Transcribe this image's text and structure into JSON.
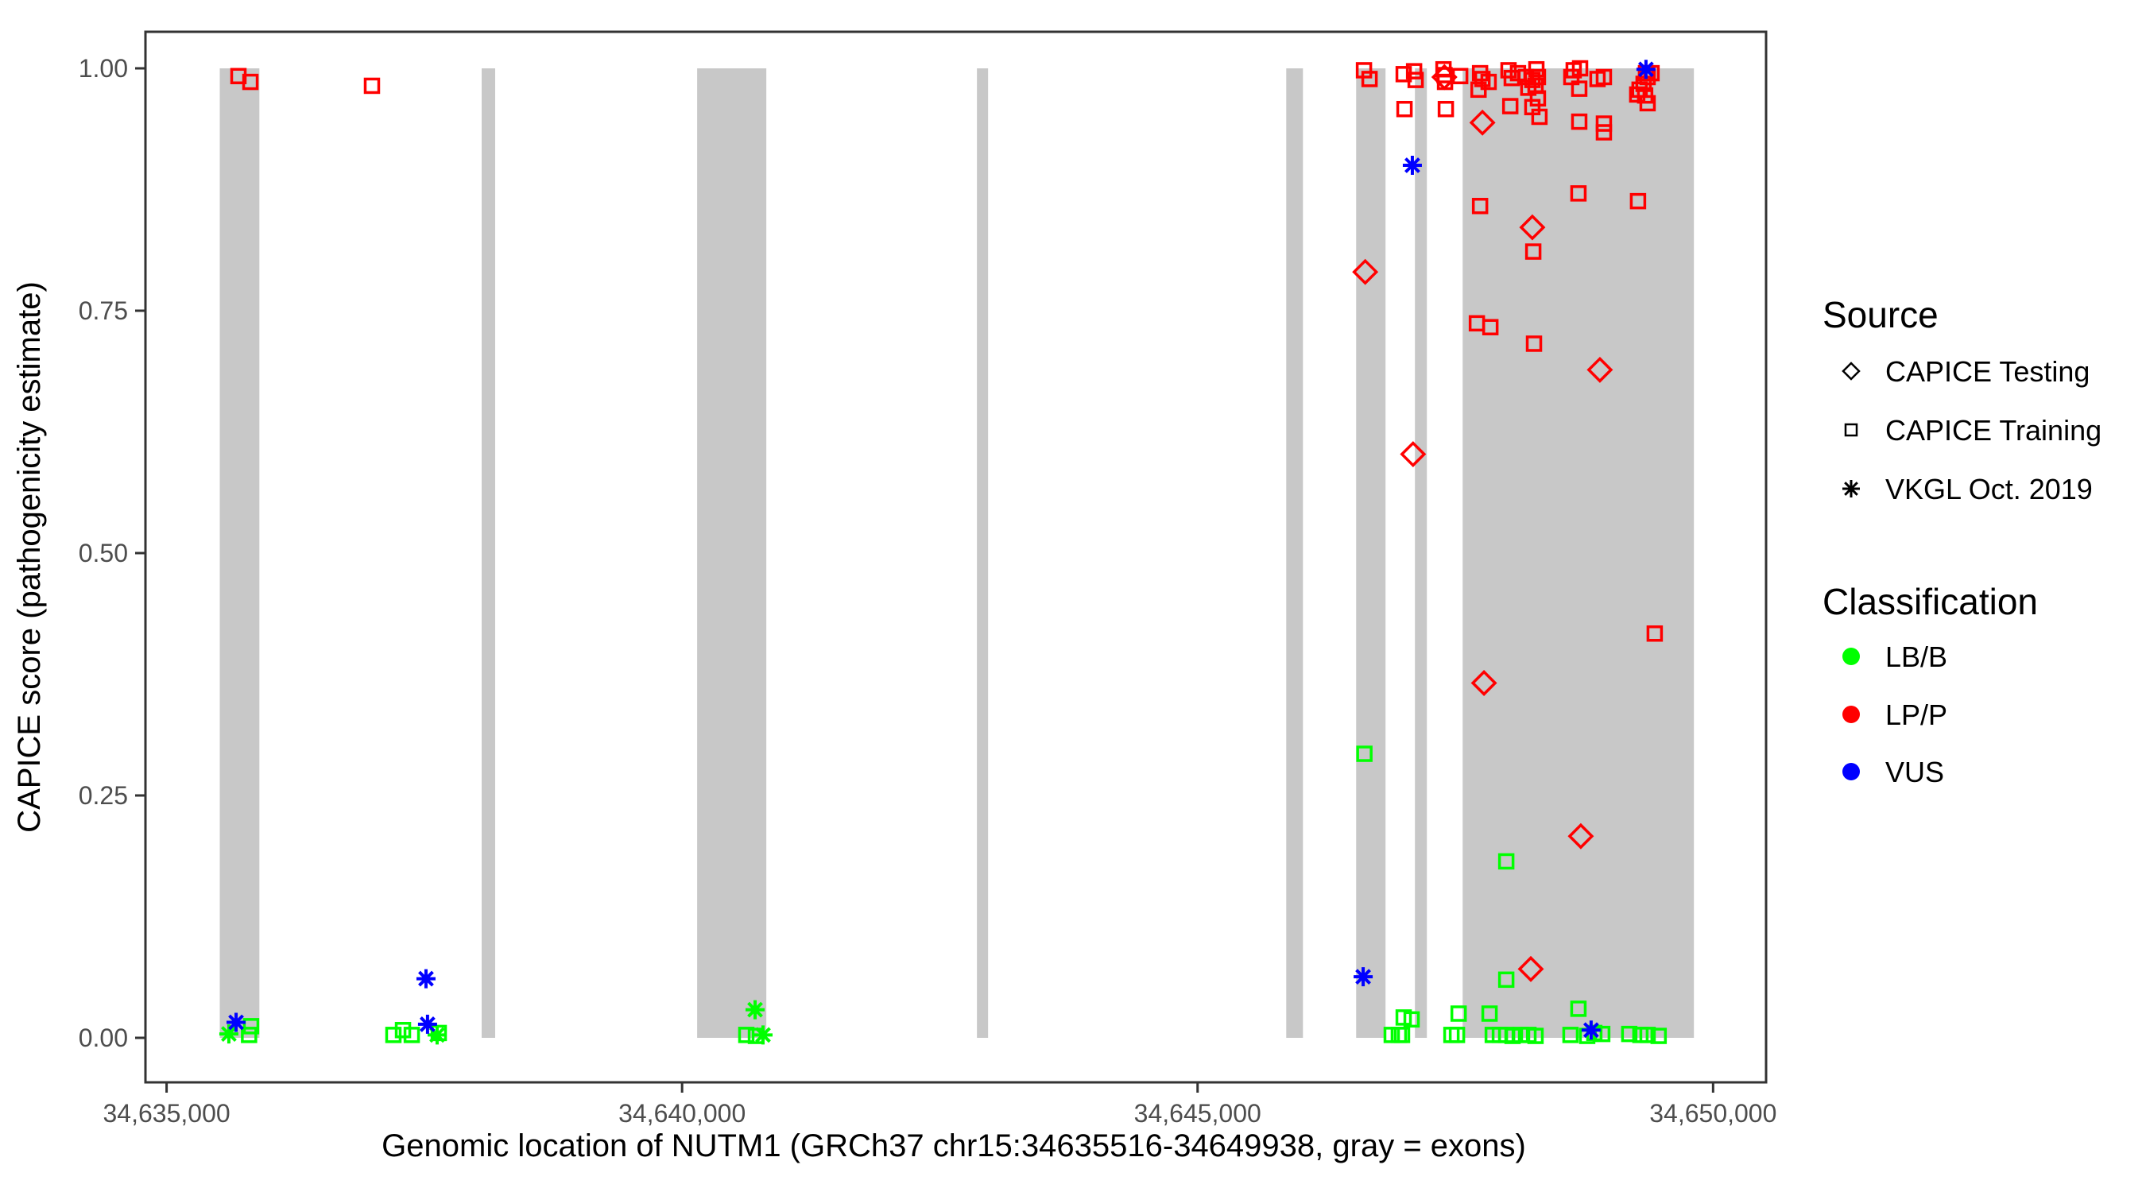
{
  "chart_data": {
    "type": "scatter",
    "title": "",
    "xlabel": "Genomic location of NUTM1 (GRCh37 chr15:34635516-34649938, gray = exons)",
    "ylabel": "CAPICE score (pathogenicity estimate)",
    "xlim": [
      34634795,
      34650514
    ],
    "ylim": [
      -0.0459,
      1.0377
    ],
    "grid": false,
    "x_ticks": [
      {
        "value": 34635000,
        "label": "34,635,000"
      },
      {
        "value": 34640000,
        "label": "34,640,000"
      },
      {
        "value": 34645000,
        "label": "34,645,000"
      },
      {
        "value": 34650000,
        "label": "34,650,000"
      }
    ],
    "y_ticks": [
      {
        "value": 0.0,
        "label": "0.00"
      },
      {
        "value": 0.25,
        "label": "0.25"
      },
      {
        "value": 0.5,
        "label": "0.50"
      },
      {
        "value": 0.75,
        "label": "0.75"
      },
      {
        "value": 1.0,
        "label": "1.00"
      }
    ],
    "exons": [
      [
        34635516,
        34635900
      ],
      [
        34638056,
        34638187
      ],
      [
        34640146,
        34640817
      ],
      [
        34642860,
        34642968
      ],
      [
        34645860,
        34646022
      ],
      [
        34646538,
        34646823
      ],
      [
        34647108,
        34647224
      ],
      [
        34647571,
        34649814
      ]
    ],
    "series": [
      {
        "source": "CAPICE Training",
        "classification": "LP/P",
        "shape": "square",
        "color": "#FF0000",
        "points": [
          [
            34635697,
            0.992
          ],
          [
            34635813,
            0.986
          ],
          [
            34636992,
            0.982
          ],
          [
            34646614,
            0.998
          ],
          [
            34646668,
            0.989
          ],
          [
            34646999,
            0.994
          ],
          [
            34647007,
            0.958
          ],
          [
            34647100,
            0.997
          ],
          [
            34647115,
            0.988
          ],
          [
            34647385,
            0.999
          ],
          [
            34647395,
            0.993
          ],
          [
            34647400,
            0.986
          ],
          [
            34647408,
            0.958
          ],
          [
            34647547,
            0.992
          ],
          [
            34647709,
            0.737
          ],
          [
            34647725,
            0.978
          ],
          [
            34647740,
            0.995
          ],
          [
            34647763,
            0.989
          ],
          [
            34647740,
            0.858
          ],
          [
            34647823,
            0.986
          ],
          [
            34647840,
            0.733
          ],
          [
            34648016,
            0.998
          ],
          [
            34648033,
            0.961
          ],
          [
            34648047,
            0.99
          ],
          [
            34648108,
            0.995
          ],
          [
            34648185,
            0.991
          ],
          [
            34648208,
            0.98
          ],
          [
            34648247,
            0.988
          ],
          [
            34648247,
            0.96
          ],
          [
            34648278,
            0.982
          ],
          [
            34648286,
            0.999
          ],
          [
            34648301,
            0.991
          ],
          [
            34648301,
            0.969
          ],
          [
            34648316,
            0.95
          ],
          [
            34648256,
            0.811
          ],
          [
            34648263,
            0.716
          ],
          [
            34648625,
            0.991
          ],
          [
            34648648,
            0.998
          ],
          [
            34648694,
            0.871
          ],
          [
            34648702,
            0.979
          ],
          [
            34648702,
            0.945
          ],
          [
            34648710,
            1.0
          ],
          [
            34648879,
            0.989
          ],
          [
            34648941,
            0.991
          ],
          [
            34648941,
            0.943
          ],
          [
            34648941,
            0.934
          ],
          [
            34649264,
            0.973
          ],
          [
            34649272,
            0.863
          ],
          [
            34649287,
            0.978
          ],
          [
            34649326,
            0.984
          ],
          [
            34649341,
            0.972
          ],
          [
            34649349,
            0.995
          ],
          [
            34649365,
            0.991
          ],
          [
            34649365,
            0.964
          ],
          [
            34649403,
            0.995
          ],
          [
            34649434,
            0.417
          ]
        ]
      },
      {
        "source": "CAPICE Testing",
        "classification": "LP/P",
        "shape": "diamond",
        "color": "#FF0000",
        "points": [
          [
            34646626,
            0.79
          ],
          [
            34647090,
            0.602
          ],
          [
            34647394,
            0.991
          ],
          [
            34647763,
            0.944
          ],
          [
            34647778,
            0.366
          ],
          [
            34648232,
            0.071
          ],
          [
            34648247,
            0.836
          ],
          [
            34648717,
            0.208
          ],
          [
            34648902,
            0.689
          ]
        ]
      },
      {
        "source": "CAPICE Training",
        "classification": "LB/B",
        "shape": "square",
        "color": "#00FF00",
        "points": [
          [
            34635800,
            0.003
          ],
          [
            34635820,
            0.012
          ],
          [
            34637200,
            0.003
          ],
          [
            34637293,
            0.008
          ],
          [
            34637378,
            0.003
          ],
          [
            34637640,
            0.005
          ],
          [
            34640623,
            0.003
          ],
          [
            34640716,
            0.002
          ],
          [
            34646618,
            0.293
          ],
          [
            34646883,
            0.003
          ],
          [
            34646952,
            0.003
          ],
          [
            34646983,
            0.003
          ],
          [
            34646999,
            0.021
          ],
          [
            34647076,
            0.019
          ],
          [
            34647462,
            0.003
          ],
          [
            34647516,
            0.003
          ],
          [
            34647532,
            0.025
          ],
          [
            34647832,
            0.025
          ],
          [
            34647863,
            0.003
          ],
          [
            34647932,
            0.003
          ],
          [
            34647994,
            0.06
          ],
          [
            34647994,
            0.182
          ],
          [
            34647994,
            0.003
          ],
          [
            34648055,
            0.002
          ],
          [
            34648133,
            0.003
          ],
          [
            34648209,
            0.003
          ],
          [
            34648278,
            0.002
          ],
          [
            34648617,
            0.003
          ],
          [
            34648694,
            0.03
          ],
          [
            34648779,
            0.002
          ],
          [
            34648848,
            0.005
          ],
          [
            34648925,
            0.004
          ],
          [
            34649187,
            0.004
          ],
          [
            34649295,
            0.003
          ],
          [
            34649365,
            0.003
          ],
          [
            34649472,
            0.002
          ]
        ]
      },
      {
        "source": "VKGL Oct. 2019",
        "classification": "LB/B",
        "shape": "star",
        "color": "#00FF00",
        "points": [
          [
            34635604,
            0.004
          ],
          [
            34637624,
            0.003
          ],
          [
            34640708,
            0.029
          ],
          [
            34640785,
            0.003
          ]
        ]
      },
      {
        "source": "VKGL Oct. 2019",
        "classification": "VUS",
        "shape": "star",
        "color": "#0000FF",
        "points": [
          [
            34635674,
            0.016
          ],
          [
            34637516,
            0.061
          ],
          [
            34637531,
            0.014
          ],
          [
            34646606,
            0.063
          ],
          [
            34647083,
            0.9
          ],
          [
            34648817,
            0.008
          ],
          [
            34649349,
            0.999
          ]
        ]
      }
    ],
    "legend": {
      "source": {
        "title": "Source",
        "items": [
          {
            "label": "CAPICE Testing",
            "shape": "diamond"
          },
          {
            "label": "CAPICE Training",
            "shape": "square"
          },
          {
            "label": "VKGL Oct. 2019",
            "shape": "star"
          }
        ]
      },
      "classification": {
        "title": "Classification",
        "items": [
          {
            "label": "LB/B",
            "color": "#00FF00"
          },
          {
            "label": "LP/P",
            "color": "#FF0000"
          },
          {
            "label": "VUS",
            "color": "#0000FF"
          }
        ]
      },
      "position": "right"
    },
    "colors": {
      "exon_gray": "#C8C8C8",
      "axis_text": "#4D4D4D",
      "axis_line": "#333333",
      "lbb_green": "#00FF00",
      "lpp_red": "#FF0000",
      "vus_blue": "#0000FF"
    }
  }
}
